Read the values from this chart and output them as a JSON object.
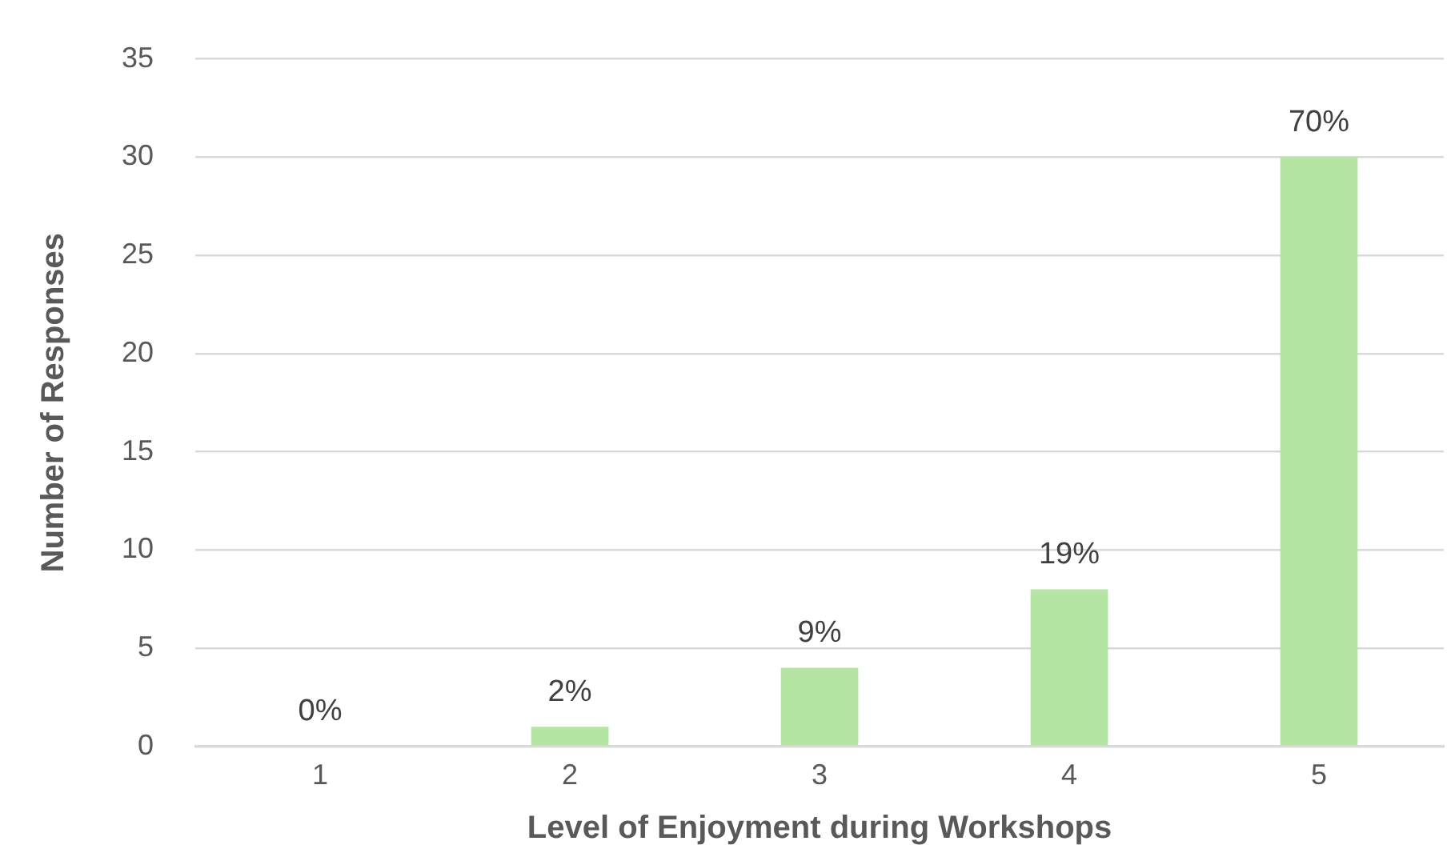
{
  "chart_data": {
    "type": "bar",
    "xlabel": "Level of Enjoyment during Workshops",
    "ylabel": "Number of Responses",
    "categories": [
      "1",
      "2",
      "3",
      "4",
      "5"
    ],
    "values": [
      0,
      1,
      4,
      8,
      30
    ],
    "annotations": [
      {
        "text": "0%",
        "x": "1",
        "y": 0
      },
      {
        "text": "2%",
        "x": "2",
        "y": 1
      },
      {
        "text": "9%",
        "x": "3",
        "y": 4
      },
      {
        "text": "19%",
        "x": "4",
        "y": 8
      },
      {
        "text": "70%",
        "x": "5",
        "y": 30
      }
    ],
    "color": "#b4e5a2",
    "ylim": [
      0,
      35
    ],
    "yticks": [
      0,
      5,
      10,
      15,
      20,
      25,
      30,
      35
    ],
    "grid": "y",
    "legend": false
  }
}
